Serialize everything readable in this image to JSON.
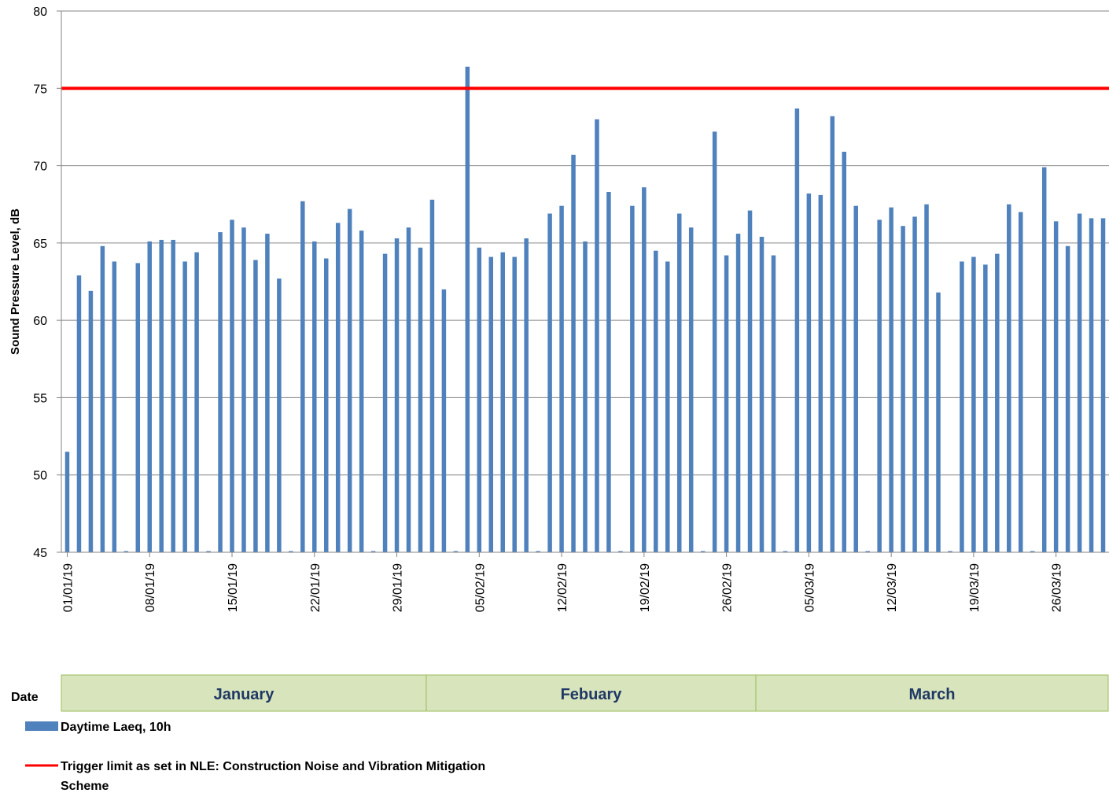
{
  "chart_data": {
    "type": "bar",
    "ylabel": "Sound Pressure Level, dB",
    "ylim": [
      45,
      80
    ],
    "yticks": [
      45,
      50,
      55,
      60,
      65,
      70,
      75,
      80
    ],
    "grid": "horizontal",
    "legend_placement": "bottom-left",
    "x_start": "2019-01-01",
    "x_end": "2019-03-31",
    "xtick_labels": [
      "01/01/19",
      "08/01/19",
      "15/01/19",
      "22/01/19",
      "29/01/19",
      "05/02/19",
      "12/02/19",
      "19/02/19",
      "26/02/19",
      "05/03/19",
      "12/03/19",
      "19/03/19",
      "26/03/19"
    ],
    "series": [
      {
        "name": "Daytime Laeq, 10h",
        "color": "#4f81bd",
        "values": [
          51.5,
          62.9,
          61.9,
          64.8,
          63.8,
          45,
          63.7,
          65.1,
          65.2,
          65.2,
          63.8,
          64.4,
          45,
          65.7,
          66.5,
          66.0,
          63.9,
          65.6,
          62.7,
          45,
          67.7,
          65.1,
          64.0,
          66.3,
          67.2,
          65.8,
          45,
          64.3,
          65.3,
          66.0,
          64.7,
          67.8,
          62.0,
          45,
          76.4,
          64.7,
          64.1,
          64.4,
          64.1,
          65.3,
          45,
          66.9,
          67.4,
          70.7,
          65.1,
          73.0,
          68.3,
          45,
          67.4,
          68.6,
          64.5,
          63.8,
          66.9,
          66.0,
          45,
          72.2,
          64.2,
          65.6,
          67.1,
          65.4,
          64.2,
          45,
          73.7,
          68.2,
          68.1,
          73.2,
          70.9,
          67.4,
          45,
          66.5,
          67.3,
          66.1,
          66.7,
          67.5,
          61.8,
          45,
          63.8,
          64.1,
          63.6,
          64.3,
          67.5,
          67.0,
          45,
          69.9,
          66.4,
          64.8,
          66.9,
          66.6,
          66.6
        ]
      },
      {
        "name": "Trigger limit as set in NLE: Construction Noise and Vibration Mitigation Scheme",
        "color": "#ff0000",
        "value": 75
      }
    ]
  },
  "month_band": {
    "header": "Date",
    "months": [
      {
        "label": "January",
        "start": "2019-01-01",
        "end": "2019-01-31"
      },
      {
        "label": "Febuary",
        "start": "2019-02-01",
        "end": "2019-02-28"
      },
      {
        "label": "March",
        "start": "2019-03-01",
        "end": "2019-03-31"
      }
    ]
  },
  "legend": {
    "items": [
      {
        "label": "Daytime Laeq, 10h",
        "color": "#4f81bd"
      },
      {
        "label_line1": "Trigger limit as set in NLE: Construction Noise and Vibration Mitigation",
        "label_line2": "Scheme",
        "color": "#ff0000"
      }
    ]
  },
  "colors": {
    "bar": "#4f81bd",
    "limit": "#ff0000",
    "grid": "#868686",
    "month_fill": "#d8e4bc",
    "month_text": "#1f3864"
  }
}
